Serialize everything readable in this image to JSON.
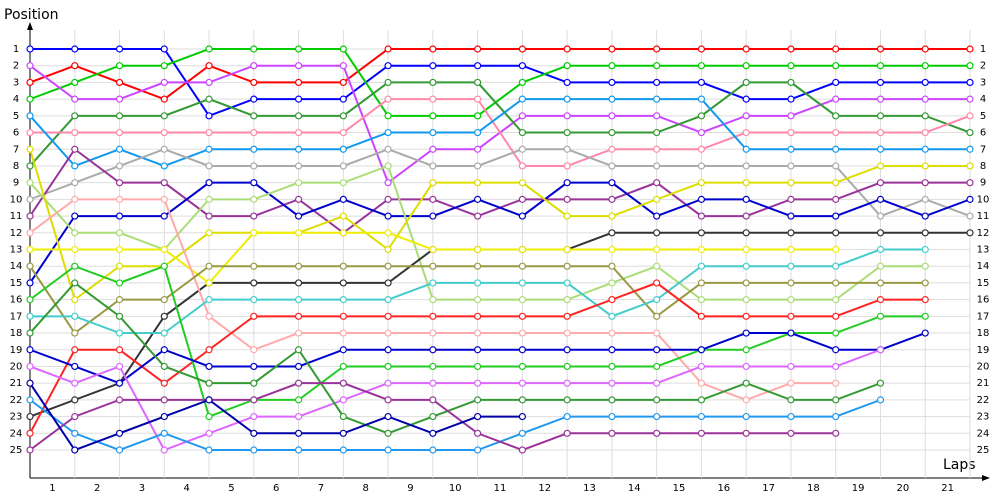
{
  "chart_data": {
    "type": "line",
    "y_label": "Position",
    "x_label": "Laps",
    "xlim": [
      0,
      21
    ],
    "xticks": [
      1,
      2,
      3,
      4,
      5,
      6,
      7,
      8,
      9,
      10,
      11,
      12,
      13,
      14,
      15,
      16,
      17,
      18,
      19,
      20,
      21
    ],
    "ylim": [
      1,
      25
    ],
    "yticks": [
      1,
      2,
      3,
      4,
      5,
      6,
      7,
      8,
      9,
      10,
      11,
      12,
      13,
      14,
      15,
      16,
      17,
      18,
      19,
      20,
      21,
      22,
      23,
      24,
      25
    ],
    "y_reversed": true,
    "grid": true,
    "series": [
      {
        "color": "#ff0000",
        "values": [
          3,
          2,
          3,
          4,
          2,
          3,
          3,
          3,
          1,
          1,
          1,
          1,
          1,
          1,
          1,
          1,
          1,
          1,
          1,
          1,
          1,
          1
        ]
      },
      {
        "color": "#0000ff",
        "values": [
          1,
          1,
          1,
          1,
          5,
          4,
          4,
          4,
          2,
          2,
          2,
          2,
          3,
          3,
          3,
          3,
          4,
          4,
          3,
          3,
          3,
          3
        ]
      },
      {
        "color": "#00cc00",
        "values": [
          4,
          3,
          2,
          2,
          1,
          1,
          1,
          1,
          5,
          5,
          5,
          3,
          2,
          2,
          2,
          2,
          2,
          2,
          2,
          2,
          2,
          2
        ]
      },
      {
        "color": "#cc44ff",
        "values": [
          2,
          4,
          4,
          3,
          3,
          2,
          2,
          2,
          9,
          7,
          7,
          5,
          5,
          5,
          5,
          6,
          5,
          5,
          4,
          4,
          4,
          4
        ]
      },
      {
        "color": "#339933",
        "values": [
          8,
          5,
          5,
          5,
          4,
          5,
          5,
          5,
          3,
          3,
          3,
          6,
          6,
          6,
          6,
          5,
          3,
          3,
          5,
          5,
          5,
          6
        ]
      },
      {
        "color": "#ff88aa",
        "values": [
          6,
          6,
          6,
          6,
          6,
          6,
          6,
          6,
          4,
          4,
          4,
          8,
          8,
          7,
          7,
          7,
          6,
          6,
          6,
          6,
          6,
          5
        ]
      },
      {
        "color": "#1199ee",
        "values": [
          5,
          8,
          7,
          8,
          7,
          7,
          7,
          7,
          6,
          6,
          6,
          4,
          4,
          4,
          4,
          4,
          7,
          7,
          7,
          7,
          7,
          7
        ]
      },
      {
        "color": "#aaaaaa",
        "values": [
          10,
          9,
          8,
          7,
          8,
          8,
          8,
          8,
          7,
          8,
          8,
          7,
          7,
          8,
          8,
          8,
          8,
          8,
          8,
          11,
          10,
          11
        ]
      },
      {
        "color": "#993399",
        "values": [
          11,
          7,
          9,
          9,
          11,
          11,
          10,
          12,
          10,
          10,
          11,
          10,
          10,
          10,
          9,
          11,
          11,
          10,
          10,
          9,
          9,
          9
        ]
      },
      {
        "color": "#0000cc",
        "values": [
          15,
          11,
          11,
          11,
          9,
          9,
          11,
          10,
          11,
          11,
          10,
          11,
          9,
          9,
          11,
          10,
          10,
          11,
          11,
          10,
          11,
          10
        ]
      },
      {
        "color": "#aadd77",
        "values": [
          9,
          12,
          12,
          13,
          10,
          10,
          9,
          9,
          8,
          16,
          16,
          16,
          16,
          15,
          14,
          16,
          16,
          16,
          16,
          14,
          14,
          null
        ]
      },
      {
        "color": "#dddd00",
        "values": [
          7,
          16,
          14,
          14,
          12,
          12,
          12,
          11,
          13,
          9,
          9,
          9,
          11,
          11,
          10,
          9,
          9,
          9,
          9,
          8,
          8,
          8
        ]
      },
      {
        "color": "#333333",
        "values": [
          23,
          22,
          21,
          17,
          15,
          15,
          15,
          15,
          15,
          13,
          13,
          13,
          13,
          12,
          12,
          12,
          12,
          12,
          12,
          12,
          12,
          12
        ]
      },
      {
        "color": "#eeee00",
        "values": [
          13,
          13,
          13,
          13,
          15,
          12,
          12,
          12,
          12,
          13,
          13,
          13,
          13,
          13,
          13,
          13,
          13,
          13,
          13,
          null,
          null,
          null
        ]
      },
      {
        "color": "#ffaaaa",
        "values": [
          12,
          10,
          10,
          10,
          17,
          19,
          18,
          18,
          18,
          18,
          18,
          18,
          18,
          18,
          18,
          21,
          22,
          21,
          21,
          null,
          null,
          null
        ]
      },
      {
        "color": "#999944",
        "values": [
          14,
          18,
          16,
          16,
          14,
          14,
          14,
          14,
          14,
          14,
          14,
          14,
          14,
          14,
          17,
          15,
          15,
          15,
          15,
          15,
          15,
          null
        ]
      },
      {
        "color": "#44cccc",
        "values": [
          17,
          17,
          18,
          18,
          16,
          16,
          16,
          16,
          16,
          15,
          15,
          15,
          15,
          17,
          16,
          14,
          14,
          14,
          14,
          13,
          13,
          null
        ]
      },
      {
        "color": "#ff2222",
        "values": [
          24,
          19,
          19,
          21,
          19,
          17,
          17,
          17,
          17,
          17,
          17,
          17,
          17,
          16,
          15,
          17,
          17,
          17,
          17,
          16,
          16,
          null
        ]
      },
      {
        "color": "#22cc22",
        "values": [
          16,
          14,
          15,
          14,
          23,
          22,
          22,
          20,
          20,
          20,
          20,
          20,
          20,
          20,
          20,
          19,
          19,
          18,
          18,
          17,
          17,
          null
        ]
      },
      {
        "color": "#0000cc",
        "values": [
          19,
          20,
          21,
          19,
          20,
          20,
          20,
          19,
          19,
          19,
          19,
          19,
          19,
          19,
          19,
          19,
          18,
          18,
          19,
          19,
          18,
          null
        ]
      },
      {
        "color": "#dd66ff",
        "values": [
          20,
          21,
          20,
          25,
          24,
          23,
          23,
          22,
          21,
          21,
          21,
          21,
          21,
          21,
          21,
          20,
          20,
          20,
          20,
          19,
          null,
          null
        ]
      },
      {
        "color": "#339933",
        "values": [
          18,
          15,
          17,
          20,
          21,
          21,
          19,
          23,
          24,
          23,
          22,
          22,
          22,
          22,
          22,
          22,
          21,
          22,
          22,
          21,
          null,
          null
        ]
      },
      {
        "color": "#2299ee",
        "values": [
          22,
          24,
          25,
          24,
          25,
          25,
          25,
          25,
          25,
          25,
          25,
          24,
          23,
          23,
          23,
          23,
          23,
          23,
          23,
          22,
          null,
          null
        ]
      },
      {
        "color": "#993399",
        "values": [
          25,
          23,
          22,
          22,
          22,
          22,
          21,
          21,
          22,
          22,
          24,
          25,
          24,
          24,
          24,
          24,
          24,
          24,
          24,
          null,
          null,
          null
        ]
      },
      {
        "color": "#0000aa",
        "values": [
          21,
          25,
          24,
          23,
          22,
          24,
          24,
          24,
          23,
          24,
          23,
          23,
          null,
          null,
          null,
          null,
          null,
          null,
          null,
          null,
          null,
          null
        ]
      }
    ]
  }
}
